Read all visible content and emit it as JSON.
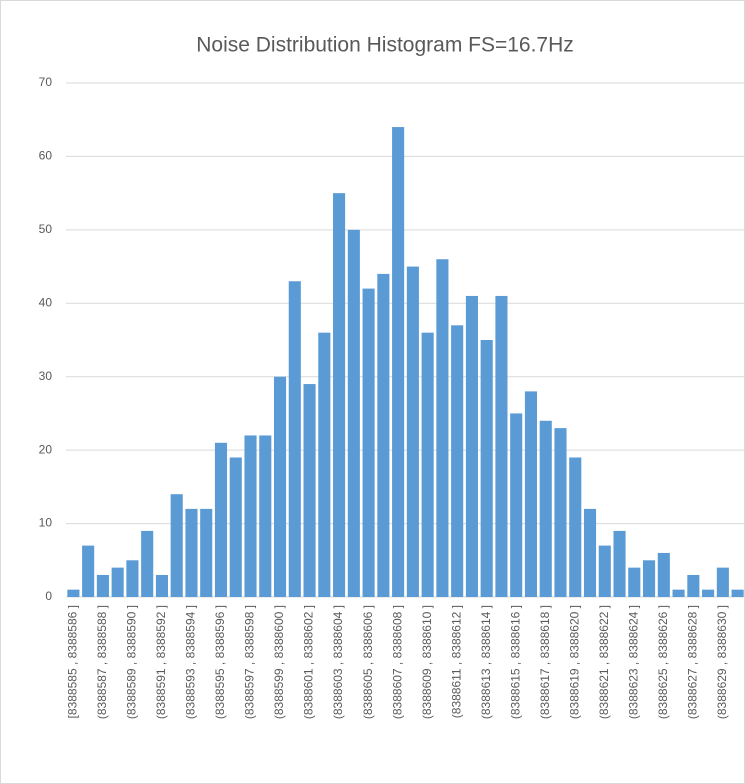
{
  "chart_data": {
    "type": "bar",
    "title": "Noise Distribution Histogram FS=16.7Hz",
    "categories": [
      "[8388585 , 8388586 ]",
      null,
      "(8388587 , 8388588 ]",
      null,
      "(8388589 , 8388590 ]",
      null,
      "(8388591 , 8388592 ]",
      null,
      "(8388593 , 8388594 ]",
      null,
      "(8388595 , 8388596 ]",
      null,
      "(8388597 , 8388598 ]",
      null,
      "(8388599 , 8388600 ]",
      null,
      "(8388601 , 8388602 ]",
      null,
      "(8388603 , 8388604 ]",
      null,
      "(8388605 , 8388606 ]",
      null,
      "(8388607 , 8388608 ]",
      null,
      "(8388609 , 8388610 ]",
      null,
      "(8388611 , 8388612 ]",
      null,
      "(8388613 , 8388614 ]",
      null,
      "(8388615 , 8388616 ]",
      null,
      "(8388617 , 8388618 ]",
      null,
      "(8388619 , 8388620 ]",
      null,
      "(8388621 , 8388622 ]",
      null,
      "(8388623 , 8388624 ]",
      null,
      "(8388625 , 8388626 ]",
      null,
      "(8388627 , 8388628 ]",
      null,
      "(8388629 , 8388630 ]",
      null
    ],
    "values": [
      1,
      7,
      3,
      4,
      5,
      9,
      3,
      14,
      12,
      12,
      21,
      19,
      22,
      22,
      30,
      43,
      29,
      36,
      55,
      50,
      42,
      44,
      64,
      45,
      36,
      46,
      37,
      41,
      35,
      41,
      25,
      28,
      24,
      23,
      19,
      12,
      7,
      9,
      4,
      5,
      6,
      1,
      3,
      1,
      4,
      1
    ],
    "color": "#5b9bd5",
    "ylim": [
      0,
      70
    ],
    "yticks": [
      0,
      10,
      20,
      30,
      40,
      50,
      60,
      70
    ],
    "grid": true
  }
}
